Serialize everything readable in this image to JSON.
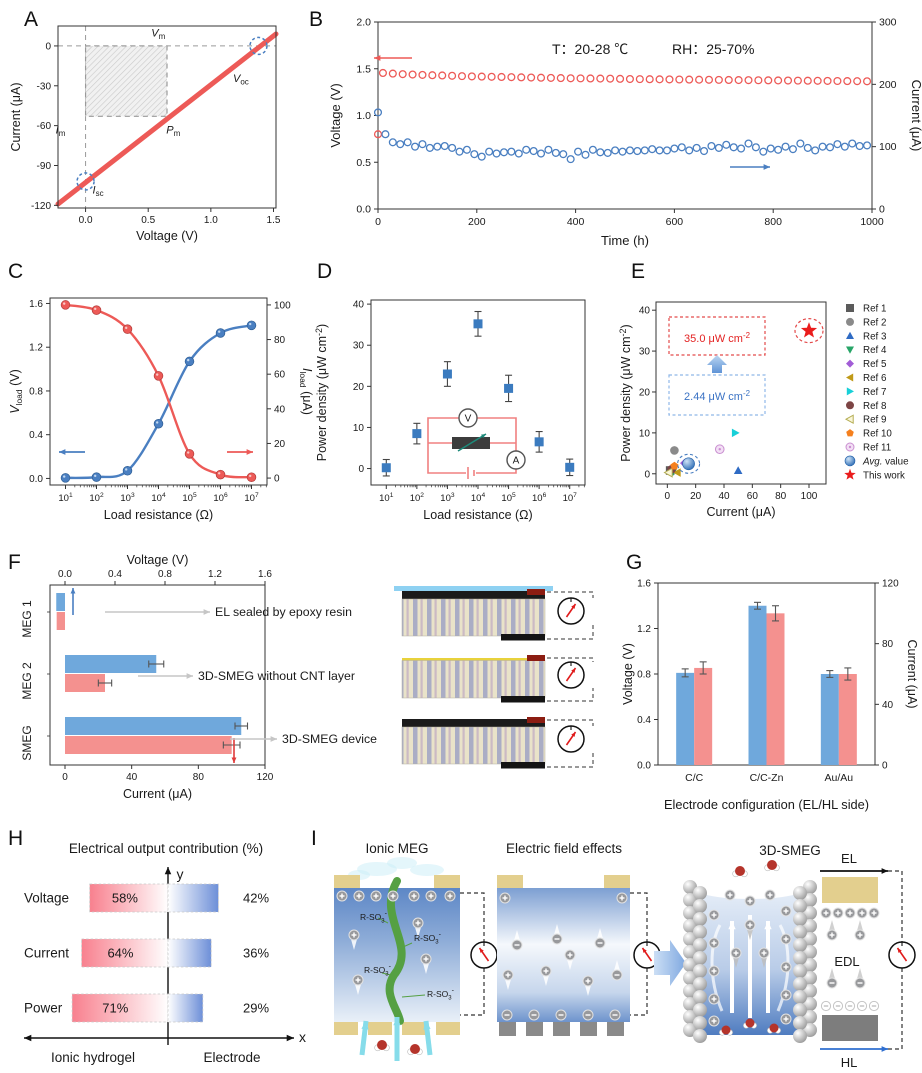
{
  "figure": {
    "panel_labels": [
      "A",
      "B",
      "C",
      "D",
      "E",
      "F",
      "G",
      "H",
      "I"
    ]
  },
  "colors": {
    "red": "#ed5a57",
    "blue": "#4a7fc1",
    "bar_blue": "#6fa8dc",
    "bar_pink": "#f4918f",
    "square_blue": "#3b7bbf",
    "gray_arrow": "#c6c6c6",
    "tan_pad": "#e3cf8e"
  },
  "panelA": {
    "chart_data": {
      "type": "line",
      "xlabel": "Voltage (V)",
      "ylabel": "Current (μA)",
      "xlim": [
        -0.22,
        1.52
      ],
      "ylim": [
        -122,
        15
      ],
      "xticks": [
        {
          "v": 0,
          "l": "0.0"
        },
        {
          "v": 0.5,
          "l": "0.5"
        },
        {
          "v": 1.0,
          "l": "1.0"
        },
        {
          "v": 1.5,
          "l": "1.5"
        }
      ],
      "yticks": [
        {
          "v": 0,
          "l": "0"
        },
        {
          "v": -30,
          "l": "-30"
        },
        {
          "v": -60,
          "l": "-60"
        },
        {
          "v": -90,
          "l": "-90"
        },
        {
          "v": -120,
          "l": "-120"
        }
      ],
      "line": {
        "x0": -0.22,
        "y0": -119,
        "x1": 1.52,
        "y1": 9
      },
      "power_rect": {
        "x0": 0,
        "y0": -53,
        "x1": 0.65,
        "y1": 0
      },
      "dashed_circles": [
        {
          "x": 1.38,
          "y": 0
        },
        {
          "x": 0,
          "y": -102
        }
      ],
      "annotations": [
        {
          "t": "V",
          "s": "m",
          "x": 0.58,
          "y": 7
        },
        {
          "t": "V",
          "s": "oc",
          "x": 1.24,
          "y": -27
        },
        {
          "t": "P",
          "s": "m",
          "x": 0.7,
          "y": -66
        },
        {
          "t": "I",
          "s": "m",
          "x": -0.2,
          "y": -66
        },
        {
          "t": "I",
          "s": "sc",
          "x": 0.1,
          "y": -111
        }
      ]
    }
  },
  "panelB": {
    "chart_data": {
      "type": "scatter",
      "xlabel": "Time (h)",
      "ylabel_left": "Voltage (V)",
      "ylabel_right": "Current (μA)",
      "xlim": [
        0,
        1000
      ],
      "ylim_left": [
        0,
        2.0
      ],
      "ylim_right": [
        0,
        300
      ],
      "xticks": [
        0,
        200,
        400,
        600,
        800,
        1000
      ],
      "yticks_left": [
        {
          "v": 0,
          "l": "0.0"
        },
        {
          "v": 0.5,
          "l": "0.5"
        },
        {
          "v": 1.0,
          "l": "1.0"
        },
        {
          "v": 1.5,
          "l": "1.5"
        },
        {
          "v": 2.0,
          "l": "2.0"
        }
      ],
      "yticks_right": [
        {
          "v": 0,
          "l": "0"
        },
        {
          "v": 100,
          "l": "100"
        },
        {
          "v": 200,
          "l": "200"
        },
        {
          "v": 300,
          "l": "300"
        }
      ],
      "annotation_temperature": "T：20-28 ℃",
      "annotation_humidity": "RH：25-70%",
      "initial_voltage_point": [
        0,
        0.8
      ],
      "voltage_series": [
        [
          10,
          1.455
        ],
        [
          30,
          1.448
        ],
        [
          50,
          1.442
        ],
        [
          70,
          1.438
        ],
        [
          90,
          1.434
        ],
        [
          110,
          1.431
        ],
        [
          130,
          1.428
        ],
        [
          150,
          1.425
        ],
        [
          170,
          1.421
        ],
        [
          190,
          1.418
        ],
        [
          210,
          1.416
        ],
        [
          230,
          1.414
        ],
        [
          250,
          1.412
        ],
        [
          270,
          1.41
        ],
        [
          290,
          1.408
        ],
        [
          310,
          1.406
        ],
        [
          330,
          1.404
        ],
        [
          350,
          1.402
        ],
        [
          370,
          1.4
        ],
        [
          390,
          1.398
        ],
        [
          410,
          1.397
        ],
        [
          430,
          1.396
        ],
        [
          450,
          1.395
        ],
        [
          470,
          1.394
        ],
        [
          490,
          1.392
        ],
        [
          510,
          1.39
        ],
        [
          530,
          1.389
        ],
        [
          550,
          1.388
        ],
        [
          570,
          1.387
        ],
        [
          590,
          1.386
        ],
        [
          610,
          1.385
        ],
        [
          630,
          1.384
        ],
        [
          650,
          1.383
        ],
        [
          670,
          1.382
        ],
        [
          690,
          1.381
        ],
        [
          710,
          1.38
        ],
        [
          730,
          1.379
        ],
        [
          750,
          1.378
        ],
        [
          770,
          1.377
        ],
        [
          790,
          1.376
        ],
        [
          810,
          1.375
        ],
        [
          830,
          1.374
        ],
        [
          850,
          1.373
        ],
        [
          870,
          1.372
        ],
        [
          890,
          1.371
        ],
        [
          910,
          1.37
        ],
        [
          930,
          1.369
        ],
        [
          950,
          1.368
        ],
        [
          970,
          1.367
        ],
        [
          990,
          1.366
        ]
      ],
      "current_series": [
        [
          0,
          155
        ],
        [
          15,
          120
        ],
        [
          30,
          107
        ],
        [
          45,
          104
        ],
        [
          60,
          107
        ],
        [
          75,
          100
        ],
        [
          90,
          104
        ],
        [
          105,
          98
        ],
        [
          120,
          100
        ],
        [
          135,
          101
        ],
        [
          150,
          98
        ],
        [
          165,
          92
        ],
        [
          180,
          95
        ],
        [
          195,
          88
        ],
        [
          210,
          84
        ],
        [
          225,
          92
        ],
        [
          240,
          89
        ],
        [
          255,
          91
        ],
        [
          270,
          92
        ],
        [
          285,
          89
        ],
        [
          300,
          95
        ],
        [
          315,
          93
        ],
        [
          330,
          89
        ],
        [
          345,
          95
        ],
        [
          360,
          90
        ],
        [
          375,
          88
        ],
        [
          390,
          80
        ],
        [
          405,
          92
        ],
        [
          420,
          87
        ],
        [
          435,
          95
        ],
        [
          450,
          91
        ],
        [
          465,
          90
        ],
        [
          480,
          94
        ],
        [
          495,
          92
        ],
        [
          510,
          94
        ],
        [
          525,
          93
        ],
        [
          540,
          94
        ],
        [
          555,
          96
        ],
        [
          570,
          94
        ],
        [
          585,
          94
        ],
        [
          600,
          97
        ],
        [
          615,
          99
        ],
        [
          630,
          94
        ],
        [
          645,
          98
        ],
        [
          660,
          93
        ],
        [
          675,
          101
        ],
        [
          690,
          98
        ],
        [
          705,
          103
        ],
        [
          720,
          99
        ],
        [
          735,
          97
        ],
        [
          750,
          105
        ],
        [
          765,
          99
        ],
        [
          780,
          92
        ],
        [
          795,
          97
        ],
        [
          810,
          95
        ],
        [
          825,
          100
        ],
        [
          840,
          96
        ],
        [
          855,
          105
        ],
        [
          870,
          98
        ],
        [
          885,
          94
        ],
        [
          900,
          100
        ],
        [
          915,
          99
        ],
        [
          930,
          104
        ],
        [
          945,
          100
        ],
        [
          960,
          105
        ],
        [
          975,
          101
        ],
        [
          990,
          102
        ]
      ]
    }
  },
  "panelC": {
    "chart_data": {
      "type": "line",
      "xlabel": "Load resistance (Ω)",
      "ylabel_left": {
        "it": "V",
        "sub": "load",
        "rest": " (V)"
      },
      "ylabel_right": {
        "it": "I",
        "sub": "load",
        "rest": " (μA)"
      },
      "x_exponents": [
        1,
        2,
        3,
        4,
        5,
        6,
        7
      ],
      "voltage_values": [
        0.005,
        0.012,
        0.07,
        0.5,
        1.07,
        1.33,
        1.4
      ],
      "current_values": [
        100,
        97,
        86,
        59,
        14,
        2,
        0.5
      ],
      "yticks_left": [
        {
          "v": 0.0,
          "l": "0.0"
        },
        {
          "v": 0.4,
          "l": "0.4"
        },
        {
          "v": 0.8,
          "l": "0.8"
        },
        {
          "v": 1.2,
          "l": "1.2"
        },
        {
          "v": 1.6,
          "l": "1.6"
        }
      ],
      "yticks_right": [
        {
          "v": 0,
          "l": "0"
        },
        {
          "v": 20,
          "l": "20"
        },
        {
          "v": 40,
          "l": "40"
        },
        {
          "v": 60,
          "l": "60"
        },
        {
          "v": 80,
          "l": "80"
        },
        {
          "v": 100,
          "l": "100"
        }
      ]
    }
  },
  "panelD": {
    "chart_data": {
      "type": "scatter",
      "xlabel": "Load resistance (Ω)",
      "ylabel": {
        "pre": "Power density (μW cm",
        "sup": "-2",
        "post": ")"
      },
      "x_exponents": [
        1,
        2,
        3,
        4,
        5,
        6,
        7
      ],
      "power_values": [
        0.2,
        8.5,
        23,
        35.2,
        19.5,
        6.5,
        0.3
      ],
      "errors": [
        2,
        2.5,
        3,
        3,
        3.2,
        2.5,
        2
      ],
      "yticks": [
        {
          "v": 0,
          "l": "0"
        },
        {
          "v": 10,
          "l": "10"
        },
        {
          "v": 20,
          "l": "20"
        },
        {
          "v": 30,
          "l": "30"
        },
        {
          "v": 40,
          "l": "40"
        }
      ],
      "inset": {
        "voltmeter": "V",
        "ammeter": "A"
      }
    }
  },
  "panelE": {
    "chart_data": {
      "type": "scatter",
      "xlabel": "Current  (μA)",
      "ylabel": {
        "pre": "Power density (μW cm",
        "sup": "-2",
        "post": ")"
      },
      "xticks": [
        0,
        20,
        40,
        60,
        80,
        100
      ],
      "yticks": [
        {
          "v": 0,
          "l": "0"
        },
        {
          "v": 10,
          "l": "10"
        },
        {
          "v": 20,
          "l": "20"
        },
        {
          "v": 30,
          "l": "30"
        },
        {
          "v": 40,
          "l": "40"
        }
      ],
      "annotation_red": {
        "pre": "35.0 μW cm",
        "sup": "-2"
      },
      "annotation_blue": {
        "pre": "2.44 μW cm",
        "sup": "-2"
      },
      "points": [
        {
          "name": "Ref 1",
          "shape": "square",
          "color": "#5b5b5b",
          "x": 2,
          "y": 0.8
        },
        {
          "name": "Ref 2",
          "shape": "circle",
          "color": "#8a8a8a",
          "x": 5,
          "y": 5.7
        },
        {
          "name": "Ref 3",
          "shape": "tri-up",
          "color": "#2f6bc4",
          "x": 50,
          "y": 0.8
        },
        {
          "name": "Ref 4",
          "shape": "tri-down",
          "color": "#27a567",
          "x": 4,
          "y": 0.5
        },
        {
          "name": "Ref 5",
          "shape": "diamond",
          "color": "#a25cd6",
          "x": 12,
          "y": 2.6
        },
        {
          "name": "Ref 6",
          "shape": "tri-left",
          "color": "#c09a18",
          "x": 7,
          "y": 0.3
        },
        {
          "name": "Ref 7",
          "shape": "tri-right",
          "color": "#17d0d8",
          "x": 48,
          "y": 10
        },
        {
          "name": "Ref 8",
          "shape": "circle",
          "color": "#7d4545",
          "x": 3,
          "y": 1.1
        },
        {
          "name": "Ref 9",
          "shape": "tri-left-open",
          "color": "#b5ae55",
          "x": 1,
          "y": 0.3
        },
        {
          "name": "Ref 10",
          "shape": "pentagon",
          "color": "#f5801e",
          "x": 5,
          "y": 1.9
        },
        {
          "name": "Ref 11",
          "shape": "circle-open",
          "color": "#c98fd0",
          "x": 37,
          "y": 6
        },
        {
          "name": "Avg. value",
          "shape": "sphere",
          "color": "#3678c2",
          "x": 15,
          "y": 2.44,
          "legend_italic_prefix": "Avg."
        },
        {
          "name": "This work",
          "shape": "star",
          "color": "#ea1c1c",
          "x": 100,
          "y": 35
        }
      ]
    }
  },
  "panelF": {
    "chart_data": {
      "type": "bar",
      "top_xlabel": "Voltage (V)",
      "bottom_xlabel": "Current (μA)",
      "top_ticks": [
        {
          "v": 0.0,
          "l": "0.0"
        },
        {
          "v": 0.4,
          "l": "0.4"
        },
        {
          "v": 0.8,
          "l": "0.8"
        },
        {
          "v": 1.2,
          "l": "1.2"
        },
        {
          "v": 1.6,
          "l": "1.6"
        }
      ],
      "bottom_ticks": [
        {
          "v": 0,
          "l": "0"
        },
        {
          "v": 40,
          "l": "40"
        },
        {
          "v": 80,
          "l": "80"
        },
        {
          "v": 120,
          "l": "120"
        }
      ],
      "categories": [
        "MEG 1",
        "MEG 2",
        "SMEG"
      ],
      "voltage": [
        -0.07,
        0.73,
        1.41
      ],
      "voltage_err": [
        0,
        0.06,
        0.05
      ],
      "current": [
        -5,
        24,
        100
      ],
      "current_err": [
        0,
        4,
        5
      ],
      "notes": [
        "EL sealed by epoxy resin",
        "3D-SMEG without CNT layer",
        "3D-SMEG device"
      ]
    }
  },
  "panelG": {
    "chart_data": {
      "type": "bar",
      "xlabel": "Electrode configuration (EL/HL side)",
      "ylabel_left": "Voltage (V)",
      "ylabel_right": "Current (μA)",
      "categories": [
        "C/C",
        "C/C-Zn",
        "Au/Au"
      ],
      "voltage": [
        0.81,
        1.4,
        0.8
      ],
      "voltage_err": [
        0.035,
        0.03,
        0.03
      ],
      "current": [
        64,
        100,
        60
      ],
      "current_err": [
        4,
        5,
        4
      ],
      "yticks_left": [
        {
          "v": 0.0,
          "l": "0.0"
        },
        {
          "v": 0.4,
          "l": "0.4"
        },
        {
          "v": 0.8,
          "l": "0.8"
        },
        {
          "v": 1.2,
          "l": "1.2"
        },
        {
          "v": 1.6,
          "l": "1.6"
        }
      ],
      "yticks_right": [
        {
          "v": 0,
          "l": "0"
        },
        {
          "v": 40,
          "l": "40"
        },
        {
          "v": 80,
          "l": "80"
        },
        {
          "v": 120,
          "l": "120"
        }
      ]
    }
  },
  "panelH": {
    "chart_data": {
      "type": "bar",
      "title": "Electrical output contribution (%)",
      "rows": [
        {
          "label": "Voltage",
          "hydrogel_pct": "58%",
          "electrode_pct": "42%",
          "hydrogel": 58,
          "electrode": 42
        },
        {
          "label": "Current",
          "hydrogel_pct": "64%",
          "electrode_pct": "36%",
          "hydrogel": 64,
          "electrode": 36
        },
        {
          "label": "Power",
          "hydrogel_pct": "71%",
          "electrode_pct": "29%",
          "hydrogel": 71,
          "electrode": 29
        }
      ],
      "x_axis_label": "x",
      "y_axis_label": "y",
      "left_group_label": "Ionic hydrogel",
      "right_group_label": "Electrode"
    }
  },
  "panelI": {
    "titles": [
      "Ionic MEG",
      "Electric field effects",
      "3D-SMEG"
    ],
    "chain_label": {
      "pre": "R-SO",
      "sub": "3",
      "sup": "-"
    },
    "labels": {
      "el": "EL",
      "edl": "EDL",
      "hl": "HL"
    }
  }
}
